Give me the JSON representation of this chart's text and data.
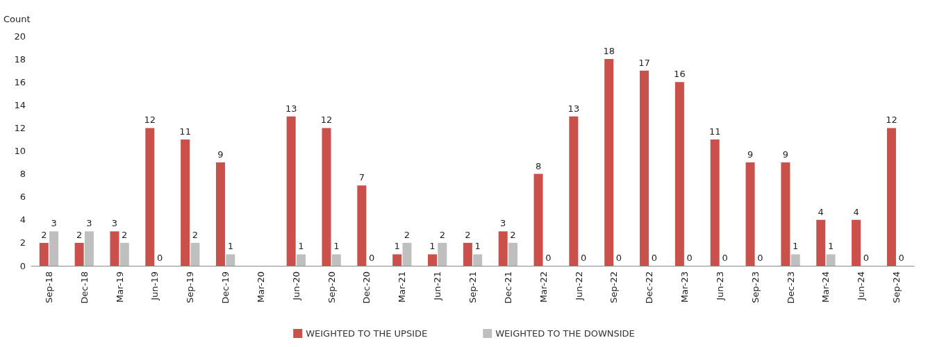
{
  "chart_data": {
    "type": "bar",
    "ylabel": "Count",
    "categories": [
      "Sep-18",
      "Dec-18",
      "Mar-19",
      "Jun-19",
      "Sep-19",
      "Dec-19",
      "Mar-20",
      "Jun-20",
      "Sep-20",
      "Dec-20",
      "Mar-21",
      "Jun-21",
      "Sep-21",
      "Dec-21",
      "Mar-22",
      "Jun-22",
      "Sep-22",
      "Dec-22",
      "Mar-23",
      "Jun-23",
      "Sep-23",
      "Dec-23",
      "Mar-24",
      "Jun-24",
      "Sep-24"
    ],
    "series": [
      {
        "name": "WEIGHTED TO THE UPSIDE",
        "color": "#c9504b",
        "values": [
          2,
          2,
          3,
          12,
          11,
          9,
          null,
          13,
          12,
          7,
          1,
          1,
          2,
          3,
          8,
          13,
          18,
          17,
          16,
          11,
          9,
          9,
          4,
          4,
          12
        ]
      },
      {
        "name": "WEIGHTED TO THE DOWNSIDE",
        "color": "#bfbfbf",
        "values": [
          3,
          3,
          2,
          0,
          2,
          1,
          null,
          1,
          1,
          0,
          2,
          2,
          1,
          2,
          0,
          0,
          0,
          0,
          0,
          0,
          0,
          1,
          1,
          0,
          0
        ]
      }
    ],
    "ylim": [
      0,
      20
    ],
    "yticks": [
      0,
      2,
      4,
      6,
      8,
      10,
      12,
      14,
      16,
      18,
      20
    ],
    "grid": false,
    "legend": "bottom",
    "data_labels": true
  }
}
